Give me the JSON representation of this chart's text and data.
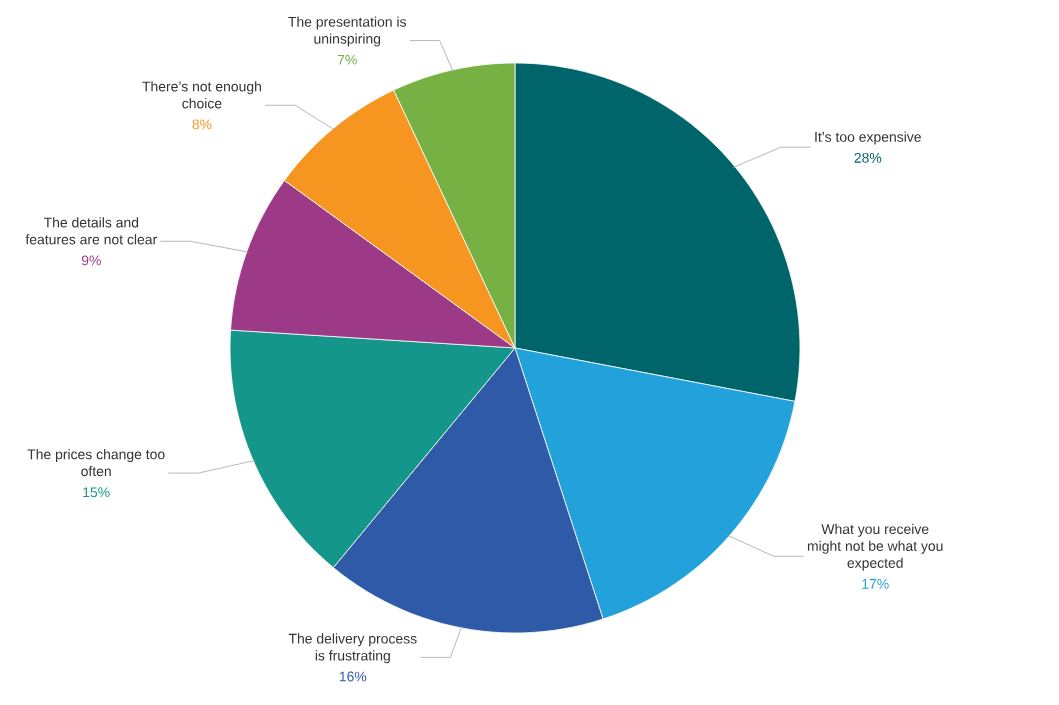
{
  "chart_data": {
    "type": "pie",
    "categories": [
      "It’s too expensive",
      "What you receive might not be what you expected",
      "The delivery process is frustrating",
      "The prices change too often",
      "The details and features are not clear",
      "There’s not enough choice",
      "The presentation is uninspiring"
    ],
    "values": [
      28,
      17,
      16,
      15,
      9,
      8,
      7
    ],
    "value_labels": [
      "28%",
      "17%",
      "16%",
      "15%",
      "9%",
      "8%",
      "7%"
    ],
    "colors": [
      "#00656b",
      "#22a1db",
      "#2e5aa7",
      "#14978a",
      "#9c3a87",
      "#f6951f",
      "#78b143"
    ]
  }
}
